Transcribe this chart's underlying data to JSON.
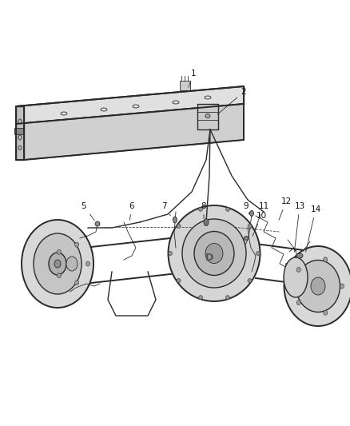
{
  "bg_color": "#ffffff",
  "fig_width": 4.38,
  "fig_height": 5.33,
  "dpi": 100,
  "line_color": "#2a2a2a",
  "light_gray": "#c8c8c8",
  "mid_gray": "#a0a0a0",
  "dark_gray": "#707070",
  "fill_light": "#e8e8e8",
  "fill_mid": "#d0d0d0",
  "fill_dark": "#b8b8b8",
  "label_fontsize": 7.5,
  "lw_main": 1.0,
  "lw_thin": 0.6,
  "lw_thick": 1.4
}
